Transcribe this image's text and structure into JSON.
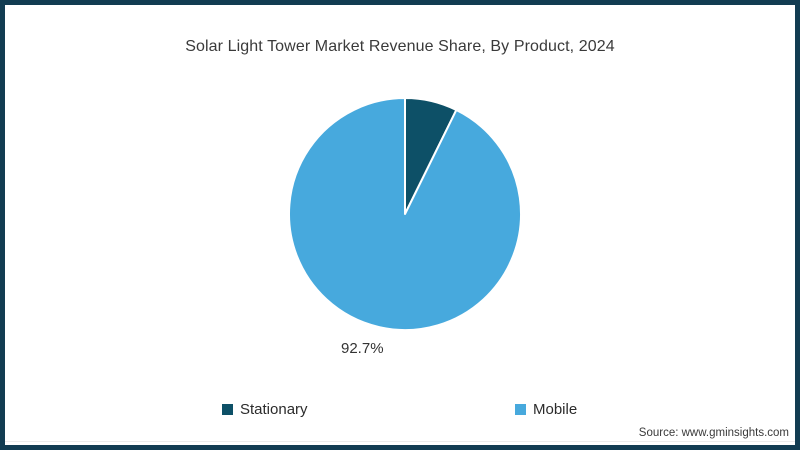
{
  "frame": {
    "border_color": "#123c52",
    "background": "#ffffff"
  },
  "source_note": "Source: www.gminsights.com",
  "chart_data": {
    "type": "pie",
    "title": "Solar Light Tower Market Revenue Share, By Product, 2024",
    "start_angle": "12 o'clock, clockwise",
    "legend_position": "bottom",
    "slice_divider_color": "#ffffff",
    "slices": [
      {
        "label": "Stationary",
        "value": 7.3,
        "pct_label": "",
        "color": "#0d5067"
      },
      {
        "label": "Mobile",
        "value": 92.7,
        "pct_label": "92.7%",
        "color": "#47a9dd"
      }
    ]
  }
}
